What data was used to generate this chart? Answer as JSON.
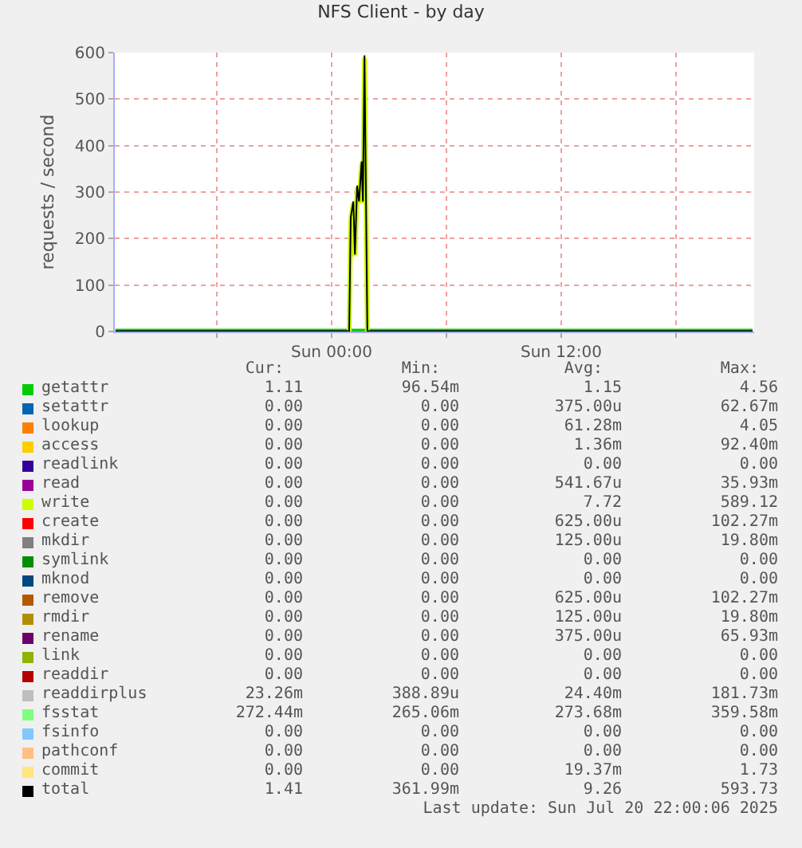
{
  "chart_data": {
    "type": "line",
    "title": "NFS Client - by day",
    "ylabel": "requests / second",
    "x": [
      "2025-07-19T12:42",
      "2025-07-20T00:51",
      "2025-07-20T00:55",
      "2025-07-20T01:00",
      "2025-07-20T01:08",
      "2025-07-20T01:13",
      "2025-07-20T01:20",
      "2025-07-20T01:26",
      "2025-07-20T01:34",
      "2025-07-20T01:38",
      "2025-07-20T01:43",
      "2025-07-20T01:52",
      "2025-07-20T01:57",
      "2025-07-20T22:00"
    ],
    "xlim": [
      "2025-07-19T12:40",
      "2025-07-20T22:05"
    ],
    "xticks": [
      {
        "value": "2025-07-19T18:00",
        "label": null
      },
      {
        "value": "2025-07-20T00:00",
        "label": "Sun 00:00"
      },
      {
        "value": "2025-07-20T06:00",
        "label": null
      },
      {
        "value": "2025-07-20T12:00",
        "label": "Sun 12:00"
      },
      {
        "value": "2025-07-20T18:00",
        "label": null
      }
    ],
    "ylim": [
      0,
      600
    ],
    "yticks": [
      0,
      100,
      200,
      300,
      400,
      500,
      600
    ],
    "grid": true,
    "legend": "bottom",
    "series": [
      {
        "name": "getattr",
        "color": "#00cc00",
        "values": [
          1,
          1,
          1,
          1,
          1,
          1,
          1,
          1,
          1,
          1,
          1,
          1,
          1,
          1
        ]
      },
      {
        "name": "setattr",
        "color": "#0066b3",
        "values": [
          null,
          null,
          null,
          null,
          null,
          null,
          null,
          null,
          null,
          null,
          null,
          null,
          null,
          null
        ]
      },
      {
        "name": "lookup",
        "color": "#ff8000",
        "values": [
          null,
          null,
          null,
          null,
          null,
          null,
          null,
          null,
          null,
          null,
          null,
          null,
          null,
          null
        ]
      },
      {
        "name": "access",
        "color": "#ffcc00",
        "values": [
          null,
          null,
          null,
          null,
          null,
          null,
          null,
          null,
          null,
          null,
          null,
          null,
          null,
          null
        ]
      },
      {
        "name": "readlink",
        "color": "#330099",
        "values": [
          null,
          null,
          null,
          null,
          null,
          null,
          null,
          null,
          null,
          null,
          null,
          null,
          null,
          null
        ]
      },
      {
        "name": "read",
        "color": "#990099",
        "values": [
          null,
          null,
          null,
          null,
          null,
          null,
          null,
          null,
          null,
          null,
          null,
          null,
          null,
          null
        ]
      },
      {
        "name": "write",
        "color": "#ccff00",
        "values": [
          null,
          null,
          0,
          242,
          276,
          162,
          310,
          276,
          362,
          276,
          589,
          0,
          null,
          null
        ]
      },
      {
        "name": "create",
        "color": "#ff0000",
        "values": [
          null,
          null,
          null,
          null,
          null,
          null,
          null,
          null,
          null,
          null,
          null,
          null,
          null,
          null
        ]
      },
      {
        "name": "mkdir",
        "color": "#808080",
        "values": [
          null,
          null,
          null,
          null,
          null,
          null,
          null,
          null,
          null,
          null,
          null,
          null,
          null,
          null
        ]
      },
      {
        "name": "symlink",
        "color": "#008f00",
        "values": [
          null,
          null,
          null,
          null,
          null,
          null,
          null,
          null,
          null,
          null,
          null,
          null,
          null,
          null
        ]
      },
      {
        "name": "mknod",
        "color": "#00487d",
        "values": [
          null,
          null,
          null,
          null,
          null,
          null,
          null,
          null,
          null,
          null,
          null,
          null,
          null,
          null
        ]
      },
      {
        "name": "remove",
        "color": "#b35a00",
        "values": [
          null,
          null,
          null,
          null,
          null,
          null,
          null,
          null,
          null,
          null,
          null,
          null,
          null,
          null
        ]
      },
      {
        "name": "rmdir",
        "color": "#b38f00",
        "values": [
          null,
          null,
          null,
          null,
          null,
          null,
          null,
          null,
          null,
          null,
          null,
          null,
          null,
          null
        ]
      },
      {
        "name": "rename",
        "color": "#6b006b",
        "values": [
          null,
          null,
          null,
          null,
          null,
          null,
          null,
          null,
          null,
          null,
          null,
          null,
          null,
          null
        ]
      },
      {
        "name": "link",
        "color": "#8fb300",
        "values": [
          null,
          null,
          null,
          null,
          null,
          null,
          null,
          null,
          null,
          null,
          null,
          null,
          null,
          null
        ]
      },
      {
        "name": "readdir",
        "color": "#b30000",
        "values": [
          null,
          null,
          null,
          null,
          null,
          null,
          null,
          null,
          null,
          null,
          null,
          null,
          null,
          null
        ]
      },
      {
        "name": "readdirplus",
        "color": "#bebebe",
        "values": [
          null,
          null,
          null,
          null,
          null,
          null,
          null,
          null,
          null,
          null,
          null,
          null,
          null,
          null
        ]
      },
      {
        "name": "fsstat",
        "color": "#80ff80",
        "values": [
          null,
          null,
          null,
          null,
          null,
          null,
          null,
          null,
          null,
          null,
          null,
          null,
          null,
          null
        ]
      },
      {
        "name": "fsinfo",
        "color": "#80c9ff",
        "values": [
          null,
          null,
          null,
          null,
          null,
          null,
          null,
          null,
          null,
          null,
          null,
          null,
          null,
          null
        ]
      },
      {
        "name": "pathconf",
        "color": "#ffc080",
        "values": [
          null,
          null,
          null,
          null,
          null,
          null,
          null,
          null,
          null,
          null,
          null,
          null,
          null,
          null
        ]
      },
      {
        "name": "commit",
        "color": "#ffe680",
        "values": [
          null,
          null,
          null,
          null,
          null,
          null,
          null,
          null,
          null,
          null,
          null,
          null,
          null,
          null
        ]
      },
      {
        "name": "total",
        "color": "#000000",
        "values": [
          1,
          1,
          1,
          246,
          280,
          166,
          314,
          280,
          366,
          280,
          594,
          1,
          1,
          1
        ]
      }
    ],
    "annotations": [
      "Cur:",
      "Min:",
      "Avg:",
      "Max:",
      "1.11",
      "96.54m",
      "1.15",
      "4.56",
      "0.00",
      "0.00",
      "375.00u",
      "62.67m",
      "0.00",
      "0.00",
      "61.28m",
      "4.05",
      "0.00",
      "0.00",
      "1.36m",
      "92.40m",
      "0.00",
      "0.00",
      "0.00",
      "0.00",
      "0.00",
      "0.00",
      "541.67u",
      "35.93m",
      "0.00",
      "0.00",
      "7.72",
      "589.12",
      "0.00",
      "0.00",
      "625.00u",
      "102.27m",
      "0.00",
      "0.00",
      "125.00u",
      "19.80m",
      "0.00",
      "0.00",
      "0.00",
      "0.00",
      "0.00",
      "0.00",
      "0.00",
      "0.00",
      "0.00",
      "0.00",
      "625.00u",
      "102.27m",
      "0.00",
      "0.00",
      "125.00u",
      "19.80m",
      "0.00",
      "0.00",
      "375.00u",
      "65.93m",
      "0.00",
      "0.00",
      "0.00",
      "0.00",
      "0.00",
      "0.00",
      "0.00",
      "0.00",
      "23.26m",
      "388.89u",
      "24.40m",
      "181.73m",
      "272.44m",
      "265.06m",
      "273.68m",
      "359.58m",
      "0.00",
      "0.00",
      "0.00",
      "0.00",
      "0.00",
      "0.00",
      "0.00",
      "0.00",
      "0.00",
      "0.00",
      "19.37m",
      "1.73",
      "1.41",
      "361.99m",
      "9.26",
      "593.73",
      "Last update: Sun Jul 20 22:00:06 2025"
    ]
  }
}
